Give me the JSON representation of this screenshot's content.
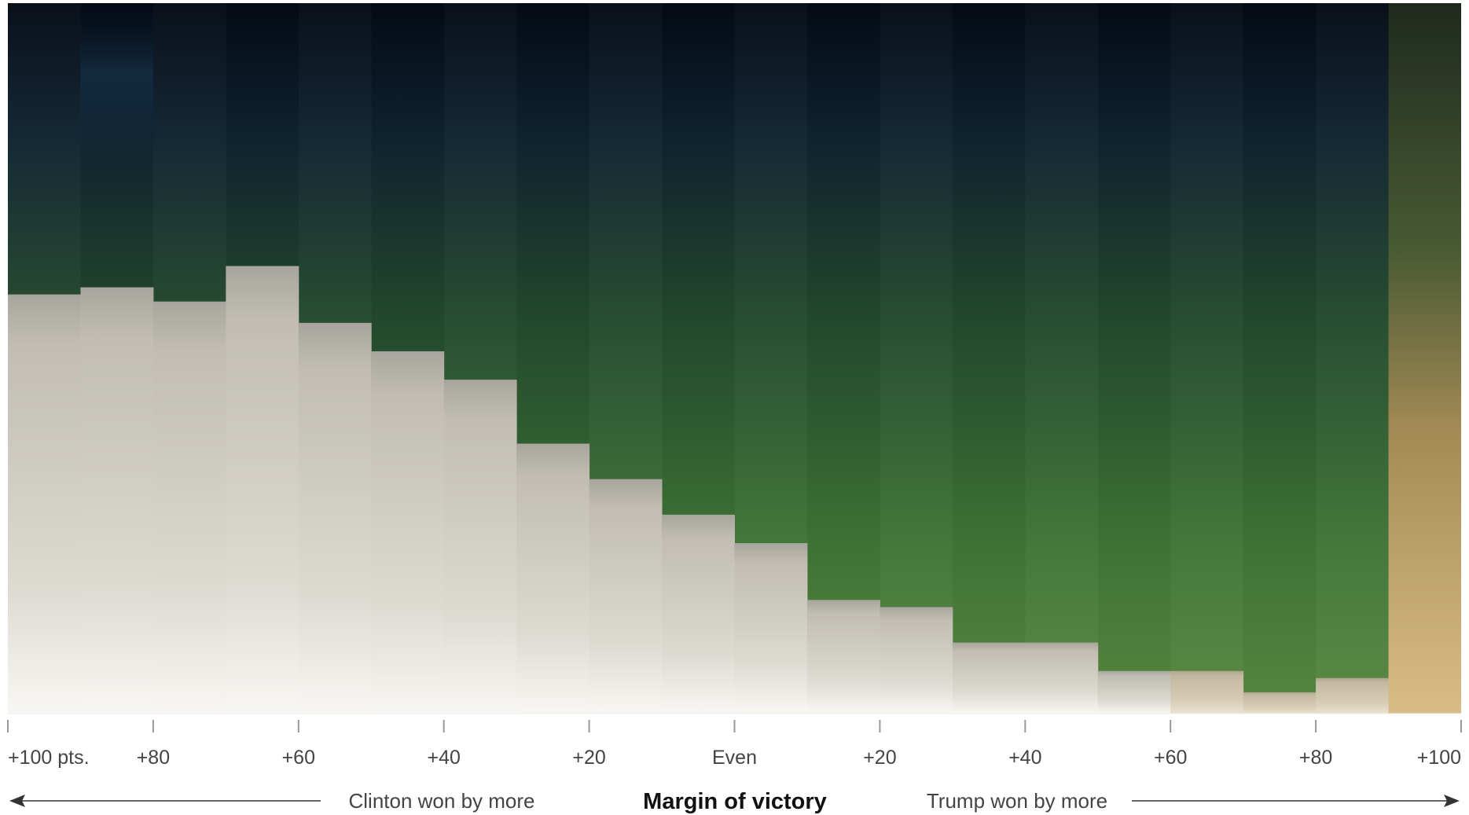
{
  "chart_data": {
    "type": "bar",
    "xlabel": "Margin of victory",
    "left_note": "Clinton won by more",
    "right_note": "Trump won by more",
    "x_ticks": [
      "+100 pts.",
      "+80",
      "+60",
      "+40",
      "+20",
      "Even",
      "+20",
      "+40",
      "+60",
      "+80",
      "+100"
    ],
    "x_tick_values": [
      -100,
      -80,
      -60,
      -40,
      -20,
      0,
      20,
      40,
      60,
      80,
      100
    ],
    "xlim": [
      -100,
      100
    ],
    "ylim": [
      0,
      1
    ],
    "bin_width": 10,
    "bin_starts": [
      -100,
      -90,
      -80,
      -70,
      -60,
      -50,
      -40,
      -30,
      -20,
      -10,
      0,
      10,
      20,
      30,
      40,
      50,
      60,
      70,
      80,
      90
    ],
    "values": [
      0.59,
      0.6,
      0.58,
      0.63,
      0.55,
      0.51,
      0.47,
      0.38,
      0.33,
      0.28,
      0.24,
      0.16,
      0.15,
      0.1,
      0.1,
      0.06,
      0.06,
      0.03,
      0.05,
      0.0
    ],
    "colors": {
      "sky_top": "#06101c",
      "green_mid": "#2e5a32",
      "green_low": "#55853f",
      "ground_top": "#a9a7a0",
      "ground_bottom": "#f7f6f2",
      "sand": "#c9ac72",
      "axis": "#999999",
      "arrow": "#333333"
    }
  }
}
